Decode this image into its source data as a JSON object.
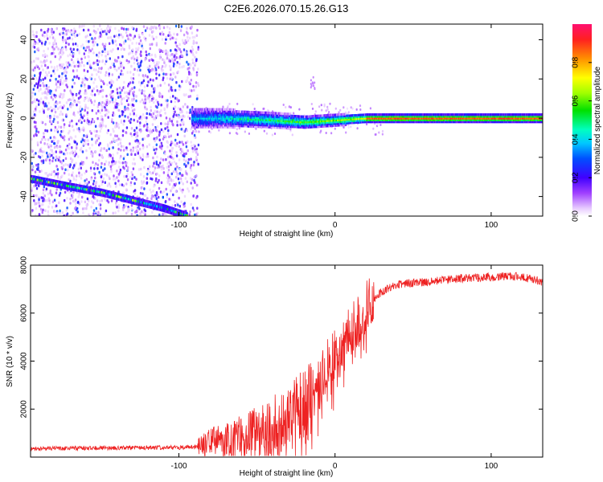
{
  "title": "C2E6.2026.070.15.26.G13",
  "colors": {
    "snr_line": "#ee2222",
    "spectrogram_low": "#f0e6ff",
    "spectrogram_mid": "#5a00dd",
    "spectrogram_ridge": "#ff2244"
  },
  "chart_data": [
    {
      "type": "heatmap",
      "xlabel": "Height of straight line (km)",
      "ylabel": "Frequency (Hz)",
      "xlim": [
        -195,
        133
      ],
      "ylim": [
        -50,
        48
      ],
      "xticks": [
        -100,
        0,
        100
      ],
      "yticks": [
        -40,
        -20,
        0,
        20,
        40
      ],
      "colorbar": {
        "label": "Normalized spectral amplitude",
        "range": [
          0.0,
          1.0
        ],
        "ticks": [
          0.0,
          0.2,
          0.4,
          0.6,
          0.8
        ],
        "tick_labels": [
          "0.0",
          "0.2",
          "0.4",
          "0.6",
          "0.8"
        ]
      },
      "features": [
        {
          "kind": "scatter_noise",
          "x_range": [
            -195,
            -88
          ],
          "y_range": [
            -50,
            48
          ]
        },
        {
          "kind": "ridge",
          "x": [
            -195,
            -170,
            -150,
            -130,
            -110,
            -95
          ],
          "y": [
            -31,
            -35,
            -38,
            -42,
            -46,
            -50
          ]
        },
        {
          "kind": "main_line",
          "x": [
            -92,
            -70,
            -40,
            -20,
            0,
            20,
            60,
            100,
            133
          ],
          "y": [
            0,
            0,
            -1,
            -2,
            -1,
            0,
            0,
            0,
            0
          ]
        }
      ]
    },
    {
      "type": "line",
      "xlabel": "Height of straight line (km)",
      "ylabel": "SNR (10 * v/v)",
      "xlim": [
        -195,
        133
      ],
      "ylim": [
        0,
        8000
      ],
      "xticks": [
        -100,
        0,
        100
      ],
      "yticks": [
        2000,
        4000,
        6000,
        8000
      ],
      "series": [
        {
          "x": [
            -195,
            -150,
            -100,
            -88,
            -80,
            -60,
            -40,
            -30,
            -20,
            -15,
            -10,
            -5,
            0,
            5,
            10,
            15,
            20,
            30,
            40,
            60,
            80,
            100,
            110,
            120,
            133
          ],
          "y": [
            350,
            380,
            400,
            420,
            700,
            900,
            1300,
            1700,
            2200,
            2600,
            3200,
            3800,
            4300,
            4900,
            5300,
            5800,
            6300,
            6900,
            7200,
            7300,
            7450,
            7500,
            7550,
            7500,
            7300
          ]
        }
      ]
    }
  ]
}
